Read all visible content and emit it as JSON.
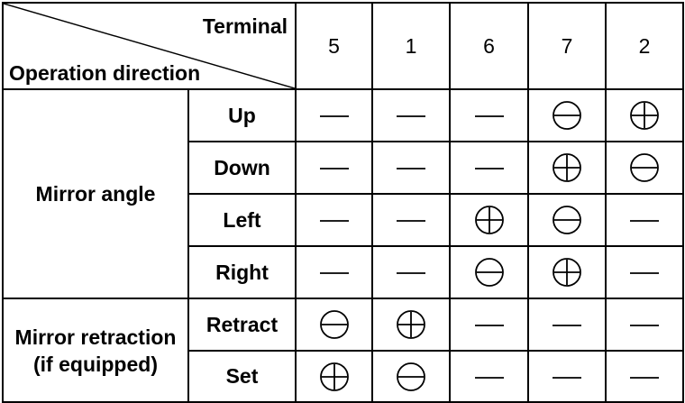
{
  "header": {
    "terminal_label": "Terminal",
    "operation_label": "Operation direction",
    "terminals": [
      "5",
      "1",
      "6",
      "7",
      "2"
    ]
  },
  "groups": [
    {
      "label_lines": [
        "Mirror angle"
      ],
      "rows": [
        {
          "label": "Up",
          "cells": [
            "dash",
            "dash",
            "dash",
            "minus",
            "plus"
          ]
        },
        {
          "label": "Down",
          "cells": [
            "dash",
            "dash",
            "dash",
            "plus",
            "minus"
          ]
        },
        {
          "label": "Left",
          "cells": [
            "dash",
            "dash",
            "plus",
            "minus",
            "dash"
          ]
        },
        {
          "label": "Right",
          "cells": [
            "dash",
            "dash",
            "minus",
            "plus",
            "dash"
          ]
        }
      ]
    },
    {
      "label_lines": [
        "Mirror retraction",
        "(if equipped)"
      ],
      "rows": [
        {
          "label": "Retract",
          "cells": [
            "minus",
            "plus",
            "dash",
            "dash",
            "dash"
          ]
        },
        {
          "label": "Set",
          "cells": [
            "plus",
            "minus",
            "dash",
            "dash",
            "dash"
          ]
        }
      ]
    }
  ],
  "symbol_meaning": {
    "plus": "circled-plus-icon",
    "minus": "circled-minus-icon",
    "dash": "dash-icon"
  }
}
